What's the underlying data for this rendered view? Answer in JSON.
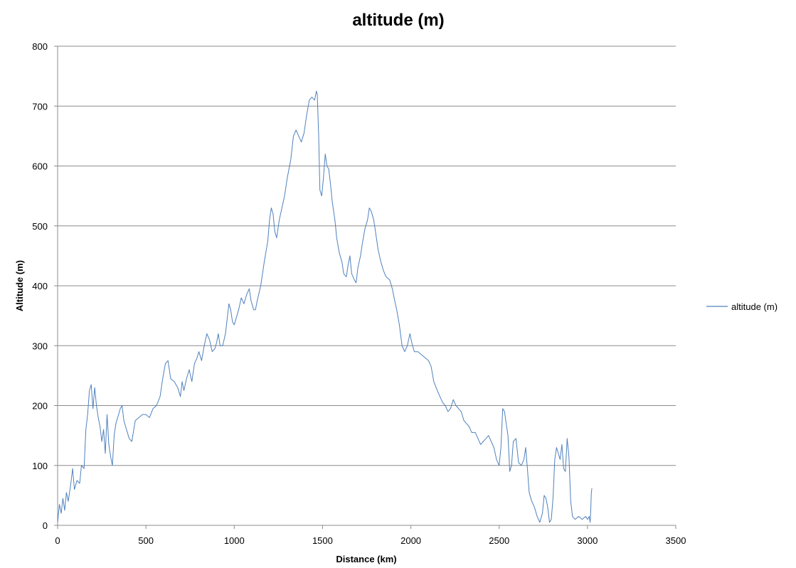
{
  "chart_data": {
    "type": "line",
    "title": "altitude (m)",
    "xlabel": "Distance (km)",
    "ylabel": "Altitude (m)",
    "xlim": [
      0,
      3500
    ],
    "ylim": [
      0,
      800
    ],
    "xticks": [
      "0",
      "500",
      "1000",
      "1500",
      "2000",
      "2500",
      "3000",
      "3500"
    ],
    "yticks": [
      "0",
      "100",
      "200",
      "300",
      "400",
      "500",
      "600",
      "700",
      "800"
    ],
    "grid": "horizontal",
    "legend_position": "right",
    "series": [
      {
        "name": "altitude (m)",
        "color": "#4f81bd",
        "points": [
          [
            0,
            5
          ],
          [
            10,
            35
          ],
          [
            20,
            20
          ],
          [
            30,
            45
          ],
          [
            40,
            25
          ],
          [
            50,
            55
          ],
          [
            60,
            40
          ],
          [
            75,
            70
          ],
          [
            85,
            95
          ],
          [
            95,
            60
          ],
          [
            110,
            75
          ],
          [
            125,
            70
          ],
          [
            135,
            100
          ],
          [
            150,
            95
          ],
          [
            160,
            160
          ],
          [
            170,
            185
          ],
          [
            180,
            225
          ],
          [
            190,
            235
          ],
          [
            200,
            195
          ],
          [
            210,
            230
          ],
          [
            220,
            200
          ],
          [
            230,
            180
          ],
          [
            240,
            165
          ],
          [
            250,
            140
          ],
          [
            260,
            160
          ],
          [
            270,
            120
          ],
          [
            280,
            185
          ],
          [
            290,
            135
          ],
          [
            300,
            115
          ],
          [
            310,
            100
          ],
          [
            320,
            150
          ],
          [
            330,
            170
          ],
          [
            345,
            185
          ],
          [
            355,
            195
          ],
          [
            365,
            200
          ],
          [
            375,
            175
          ],
          [
            390,
            160
          ],
          [
            405,
            145
          ],
          [
            420,
            140
          ],
          [
            440,
            175
          ],
          [
            460,
            180
          ],
          [
            480,
            185
          ],
          [
            500,
            185
          ],
          [
            520,
            180
          ],
          [
            540,
            195
          ],
          [
            560,
            200
          ],
          [
            580,
            215
          ],
          [
            595,
            245
          ],
          [
            610,
            270
          ],
          [
            625,
            275
          ],
          [
            640,
            245
          ],
          [
            660,
            240
          ],
          [
            680,
            230
          ],
          [
            695,
            215
          ],
          [
            705,
            240
          ],
          [
            715,
            225
          ],
          [
            730,
            245
          ],
          [
            745,
            260
          ],
          [
            760,
            240
          ],
          [
            775,
            270
          ],
          [
            790,
            280
          ],
          [
            800,
            290
          ],
          [
            815,
            275
          ],
          [
            830,
            300
          ],
          [
            845,
            320
          ],
          [
            860,
            310
          ],
          [
            875,
            290
          ],
          [
            890,
            295
          ],
          [
            900,
            305
          ],
          [
            910,
            320
          ],
          [
            920,
            300
          ],
          [
            935,
            300
          ],
          [
            950,
            320
          ],
          [
            960,
            345
          ],
          [
            970,
            370
          ],
          [
            980,
            360
          ],
          [
            990,
            340
          ],
          [
            1000,
            335
          ],
          [
            1010,
            345
          ],
          [
            1025,
            360
          ],
          [
            1040,
            380
          ],
          [
            1055,
            370
          ],
          [
            1070,
            385
          ],
          [
            1085,
            395
          ],
          [
            1095,
            375
          ],
          [
            1110,
            360
          ],
          [
            1120,
            360
          ],
          [
            1130,
            375
          ],
          [
            1150,
            400
          ],
          [
            1170,
            440
          ],
          [
            1190,
            475
          ],
          [
            1200,
            510
          ],
          [
            1210,
            530
          ],
          [
            1220,
            520
          ],
          [
            1230,
            490
          ],
          [
            1240,
            480
          ],
          [
            1255,
            510
          ],
          [
            1270,
            530
          ],
          [
            1285,
            550
          ],
          [
            1300,
            580
          ],
          [
            1320,
            610
          ],
          [
            1335,
            650
          ],
          [
            1350,
            660
          ],
          [
            1365,
            650
          ],
          [
            1380,
            640
          ],
          [
            1395,
            655
          ],
          [
            1410,
            685
          ],
          [
            1425,
            710
          ],
          [
            1440,
            715
          ],
          [
            1455,
            710
          ],
          [
            1465,
            725
          ],
          [
            1470,
            720
          ],
          [
            1478,
            650
          ],
          [
            1485,
            560
          ],
          [
            1495,
            550
          ],
          [
            1505,
            580
          ],
          [
            1515,
            620
          ],
          [
            1525,
            600
          ],
          [
            1535,
            595
          ],
          [
            1545,
            570
          ],
          [
            1555,
            540
          ],
          [
            1570,
            510
          ],
          [
            1580,
            480
          ],
          [
            1595,
            455
          ],
          [
            1610,
            440
          ],
          [
            1620,
            420
          ],
          [
            1635,
            415
          ],
          [
            1645,
            435
          ],
          [
            1655,
            450
          ],
          [
            1665,
            420
          ],
          [
            1680,
            410
          ],
          [
            1690,
            405
          ],
          [
            1700,
            430
          ],
          [
            1715,
            450
          ],
          [
            1725,
            470
          ],
          [
            1740,
            495
          ],
          [
            1755,
            510
          ],
          [
            1765,
            530
          ],
          [
            1775,
            525
          ],
          [
            1790,
            510
          ],
          [
            1800,
            490
          ],
          [
            1815,
            460
          ],
          [
            1830,
            440
          ],
          [
            1845,
            425
          ],
          [
            1860,
            415
          ],
          [
            1880,
            410
          ],
          [
            1895,
            395
          ],
          [
            1905,
            380
          ],
          [
            1920,
            360
          ],
          [
            1935,
            335
          ],
          [
            1950,
            300
          ],
          [
            1965,
            290
          ],
          [
            1980,
            300
          ],
          [
            1995,
            320
          ],
          [
            2005,
            305
          ],
          [
            2020,
            290
          ],
          [
            2040,
            290
          ],
          [
            2060,
            285
          ],
          [
            2080,
            280
          ],
          [
            2100,
            275
          ],
          [
            2115,
            265
          ],
          [
            2130,
            240
          ],
          [
            2150,
            225
          ],
          [
            2165,
            215
          ],
          [
            2180,
            205
          ],
          [
            2195,
            200
          ],
          [
            2210,
            190
          ],
          [
            2225,
            195
          ],
          [
            2240,
            210
          ],
          [
            2255,
            200
          ],
          [
            2270,
            195
          ],
          [
            2285,
            190
          ],
          [
            2300,
            175
          ],
          [
            2315,
            170
          ],
          [
            2330,
            165
          ],
          [
            2345,
            155
          ],
          [
            2365,
            155
          ],
          [
            2380,
            145
          ],
          [
            2395,
            135
          ],
          [
            2410,
            140
          ],
          [
            2425,
            145
          ],
          [
            2440,
            150
          ],
          [
            2455,
            140
          ],
          [
            2470,
            130
          ],
          [
            2485,
            110
          ],
          [
            2500,
            100
          ],
          [
            2510,
            130
          ],
          [
            2520,
            195
          ],
          [
            2530,
            190
          ],
          [
            2540,
            170
          ],
          [
            2550,
            150
          ],
          [
            2560,
            90
          ],
          [
            2570,
            100
          ],
          [
            2580,
            140
          ],
          [
            2595,
            145
          ],
          [
            2610,
            105
          ],
          [
            2625,
            100
          ],
          [
            2640,
            110
          ],
          [
            2650,
            130
          ],
          [
            2660,
            95
          ],
          [
            2670,
            55
          ],
          [
            2685,
            40
          ],
          [
            2700,
            30
          ],
          [
            2715,
            15
          ],
          [
            2730,
            5
          ],
          [
            2745,
            20
          ],
          [
            2755,
            50
          ],
          [
            2765,
            45
          ],
          [
            2775,
            30
          ],
          [
            2785,
            5
          ],
          [
            2795,
            10
          ],
          [
            2805,
            45
          ],
          [
            2815,
            110
          ],
          [
            2825,
            130
          ],
          [
            2835,
            120
          ],
          [
            2845,
            110
          ],
          [
            2855,
            135
          ],
          [
            2865,
            95
          ],
          [
            2875,
            90
          ],
          [
            2885,
            145
          ],
          [
            2895,
            115
          ],
          [
            2905,
            40
          ],
          [
            2915,
            15
          ],
          [
            2930,
            10
          ],
          [
            2950,
            15
          ],
          [
            2970,
            10
          ],
          [
            2990,
            15
          ],
          [
            3000,
            10
          ],
          [
            3010,
            15
          ],
          [
            3015,
            5
          ],
          [
            3018,
            20
          ],
          [
            3022,
            55
          ],
          [
            3025,
            62
          ]
        ]
      }
    ]
  }
}
